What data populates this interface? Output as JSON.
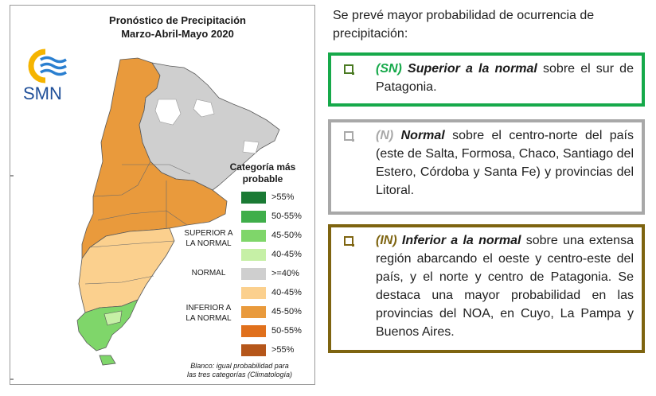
{
  "map": {
    "title_line1": "Pronóstico de Precipitación",
    "title_line2": "Marzo-Abril-Mayo 2020",
    "logo_text": "SMN",
    "legend_title_line1": "Categoría más",
    "legend_title_line2": "probable",
    "legend_groups": {
      "superior_line1": "SUPERIOR A",
      "superior_line2": "LA NORMAL",
      "normal": "NORMAL",
      "inferior_line1": "INFERIOR A",
      "inferior_line2": "LA NORMAL"
    },
    "legend_items": [
      {
        "label": ">55%",
        "color": "#1a7a34"
      },
      {
        "label": "50-55%",
        "color": "#3fae4a"
      },
      {
        "label": "45-50%",
        "color": "#7fd66a"
      },
      {
        "label": "40-45%",
        "color": "#c6f0a6"
      },
      {
        "label": ">=40%",
        "color": "#cfcfcf"
      },
      {
        "label": "40-45%",
        "color": "#fbd08e"
      },
      {
        "label": "45-50%",
        "color": "#e99a3c"
      },
      {
        "label": "50-55%",
        "color": "#e0701c"
      },
      {
        "label": ">55%",
        "color": "#b5561a"
      }
    ],
    "footnote_line1": "Blanco: igual probabilidad para",
    "footnote_line2": "las tres categorías (Climatología)"
  },
  "text": {
    "intro": "Se prevé mayor probabilidad de ocurrencia de precipitación:",
    "sn": {
      "code": "(SN)",
      "category": "Superior a la normal",
      "rest": "sobre el sur de Patagonia.",
      "code_color": "#16a94a"
    },
    "n": {
      "code": "(N)",
      "category": "Normal",
      "rest": "sobre el centro-norte del país (este de Salta, Formosa, Chaco, Santiago del Estero, Córdoba y Santa Fe) y provincias del Litoral.",
      "code_color": "#a8a8a8"
    },
    "in": {
      "code": "(IN)",
      "category": "Inferior a la normal",
      "rest": "sobre una extensa región abarcando el oeste y centro-este del país, y el norte y centro de Patagonia. Se destaca una mayor probabilidad en las provincias del NOA, en Cuyo, La Pampa y Buenos Aires.",
      "code_color": "#7e6410"
    }
  }
}
